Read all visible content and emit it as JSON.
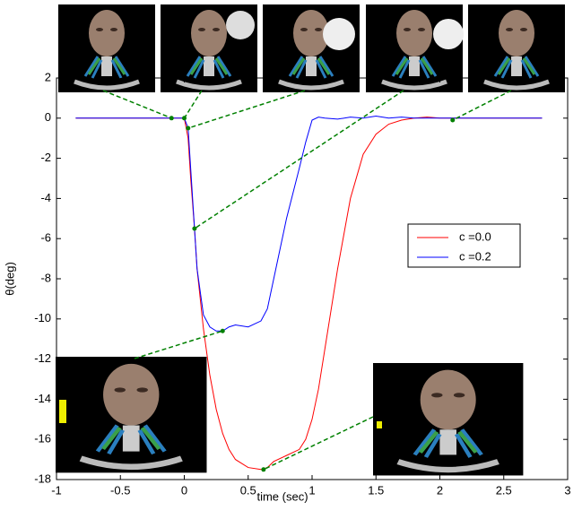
{
  "chart_data": {
    "type": "line",
    "xlabel": "time (sec)",
    "ylabel": "θ(deg)",
    "x": [
      -0.85,
      -0.5,
      -0.2,
      -0.05,
      0,
      0.03,
      0.05,
      0.08,
      0.1,
      0.15,
      0.2,
      0.25,
      0.3,
      0.35,
      0.4,
      0.5,
      0.6,
      0.65,
      0.7,
      0.8,
      0.9,
      0.95,
      1.0,
      1.05,
      1.1,
      1.2,
      1.3,
      1.4,
      1.5,
      1.6,
      1.7,
      1.8,
      1.9,
      2.0,
      2.2,
      2.5,
      2.8
    ],
    "series": [
      {
        "name": "c =0.0",
        "color": "#ff0000",
        "values": [
          0,
          0,
          0,
          0,
          0,
          -1,
          -3,
          -5.5,
          -7.5,
          -10.5,
          -12.8,
          -14.5,
          -15.7,
          -16.5,
          -17,
          -17.4,
          -17.5,
          -17.4,
          -17.1,
          -16.8,
          -16.5,
          -16,
          -15,
          -13.5,
          -11.5,
          -7.5,
          -4,
          -1.8,
          -0.8,
          -0.3,
          -0.1,
          0,
          0.05,
          0,
          0,
          0,
          0
        ]
      },
      {
        "name": "c =0.2",
        "color": "#0000ff",
        "values": [
          0,
          0,
          0,
          0,
          0,
          -0.5,
          -2.5,
          -5.5,
          -7.5,
          -9.8,
          -10.4,
          -10.6,
          -10.6,
          -10.4,
          -10.3,
          -10.4,
          -10.1,
          -9.5,
          -8,
          -5,
          -2.5,
          -1.2,
          -0.1,
          0.05,
          0,
          -0.05,
          0.05,
          0,
          0.1,
          0,
          0.05,
          0,
          0,
          0,
          0,
          0,
          0
        ]
      }
    ],
    "markers": {
      "color": "#008000",
      "x": [
        -0.1,
        0,
        0.03,
        0.08,
        0.3,
        0.62,
        2.1
      ],
      "y": [
        0,
        0,
        -0.5,
        -5.5,
        -10.6,
        -17.5,
        -0.1
      ]
    },
    "xlim": [
      -1,
      3
    ],
    "xticks": [
      -1,
      -0.5,
      0,
      0.5,
      1,
      1.5,
      2,
      2.5,
      3
    ],
    "ylim": [
      -18,
      2
    ],
    "yticks": [
      2,
      0,
      -2,
      -4,
      -6,
      -8,
      -10,
      -12,
      -14,
      -16,
      -18
    ],
    "legend": "right"
  }
}
